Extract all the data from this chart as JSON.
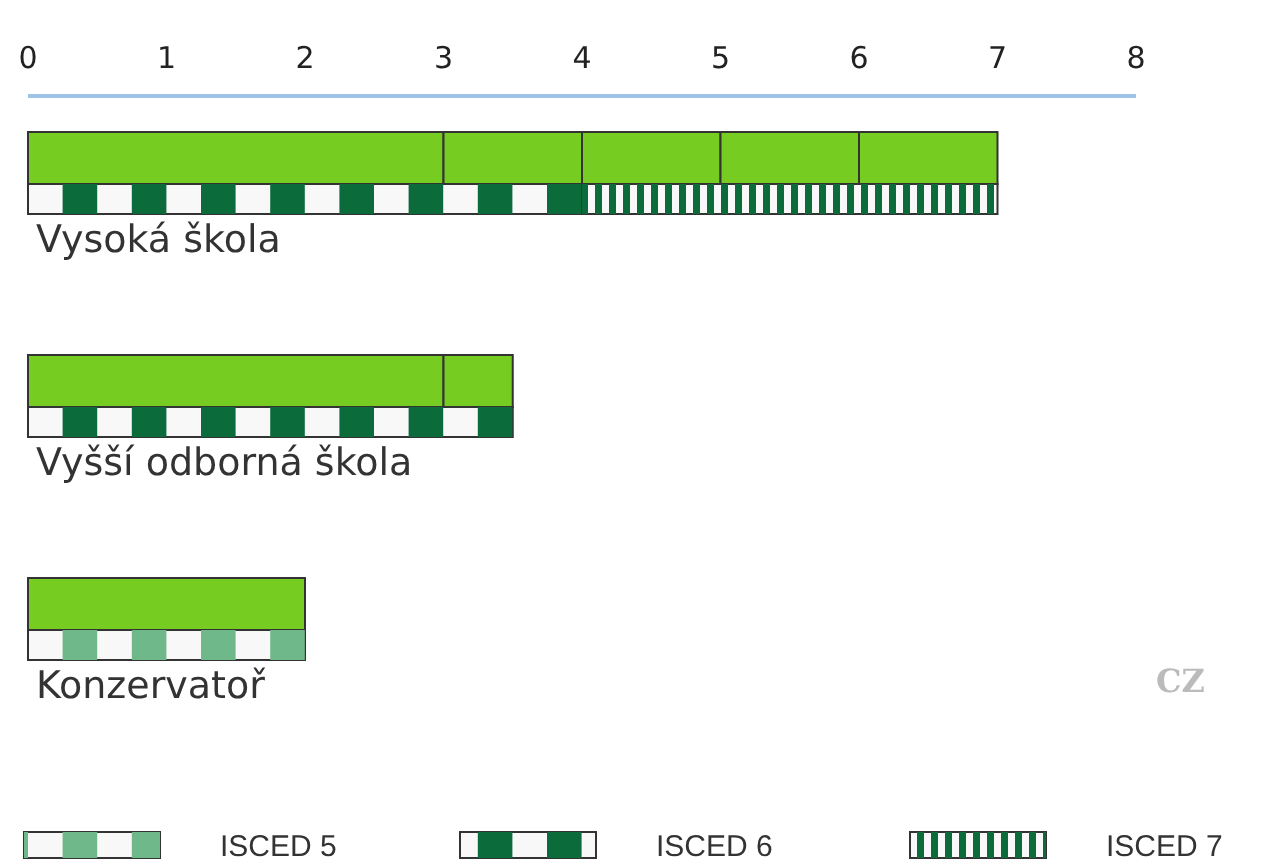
{
  "chart_data": {
    "type": "bar",
    "orientation": "horizontal",
    "categories": [
      "Vysoká škola",
      "Vyšší odborná škola",
      "Konzervatoř"
    ],
    "xlim": [
      0,
      8
    ],
    "xticks": [
      0,
      1,
      2,
      3,
      4,
      5,
      6,
      7,
      8
    ],
    "legend": "bottom",
    "annotations": [
      "CZ"
    ],
    "series": [
      {
        "color": "#77cc22",
        "values": [
          3,
          3,
          2
        ],
        "base": [
          0,
          0,
          0
        ]
      },
      {
        "color": "#77cc22",
        "values": [
          1,
          0.5,
          null
        ],
        "base": [
          3,
          3,
          null
        ]
      },
      {
        "color": "#77cc22",
        "values": [
          1,
          null,
          null
        ],
        "base": [
          4,
          null,
          null
        ]
      },
      {
        "color": "#77cc22",
        "values": [
          1,
          null,
          null
        ],
        "base": [
          5,
          null,
          null
        ]
      },
      {
        "color": "#77cc22",
        "values": [
          1,
          null,
          null
        ],
        "base": [
          6,
          null,
          null
        ]
      },
      {
        "name": "ISCED 5",
        "color": "#6fb88a",
        "values": [
          null,
          null,
          2
        ],
        "base": [
          null,
          null,
          0
        ]
      },
      {
        "name": "ISCED 6",
        "color": "#0b6b3a",
        "values": [
          4,
          3.5,
          null
        ],
        "base": [
          0,
          0,
          null
        ]
      },
      {
        "name": "ISCED 7",
        "color": "#0b6b3a",
        "values": [
          3,
          null,
          null
        ],
        "base": [
          4,
          null,
          null
        ]
      }
    ]
  }
}
